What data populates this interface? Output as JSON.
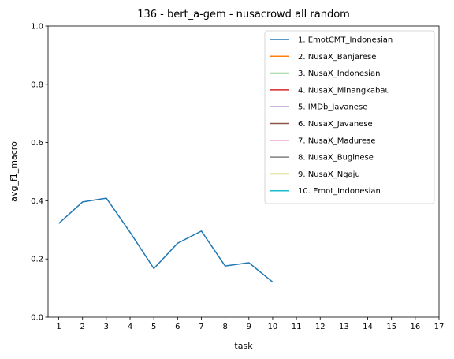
{
  "chart_data": {
    "type": "line",
    "title": "136 - bert_a-gem - nusacrowd all random",
    "xlabel": "task",
    "ylabel": "avg_f1_macro",
    "xlim": [
      0.55,
      17
    ],
    "ylim": [
      0,
      1
    ],
    "x_ticks": [
      1,
      2,
      3,
      4,
      5,
      6,
      7,
      8,
      9,
      10,
      11,
      12,
      13,
      14,
      15,
      16,
      17
    ],
    "y_ticks": [
      0.0,
      0.2,
      0.4,
      0.6,
      0.8,
      1.0
    ],
    "y_tick_labels": [
      "0.0",
      "0.2",
      "0.4",
      "0.6",
      "0.8",
      "1.0"
    ],
    "grid": false,
    "legend_position": "top-right",
    "series": [
      {
        "name": "1. EmotCMT_Indonesian",
        "color": "#1f77b4",
        "x": [
          1,
          2,
          3,
          4,
          5,
          6,
          7,
          8,
          9,
          10
        ],
        "values": [
          0.322,
          0.396,
          0.409,
          0.292,
          0.167,
          0.254,
          0.296,
          0.176,
          0.187,
          0.121
        ]
      },
      {
        "name": "2. NusaX_Banjarese",
        "color": "#ff7f0e",
        "x": [],
        "values": []
      },
      {
        "name": "3. NusaX_Indonesian",
        "color": "#2ca02c",
        "x": [],
        "values": []
      },
      {
        "name": "4. NusaX_Minangkabau",
        "color": "#d62728",
        "x": [],
        "values": []
      },
      {
        "name": "5. IMDb_Javanese",
        "color": "#9467bd",
        "x": [],
        "values": []
      },
      {
        "name": "6. NusaX_Javanese",
        "color": "#8c564b",
        "x": [],
        "values": []
      },
      {
        "name": "7. NusaX_Madurese",
        "color": "#e377c2",
        "x": [],
        "values": []
      },
      {
        "name": "8. NusaX_Buginese",
        "color": "#7f7f7f",
        "x": [],
        "values": []
      },
      {
        "name": "9. NusaX_Ngaju",
        "color": "#bcbd22",
        "x": [],
        "values": []
      },
      {
        "name": "10. Emot_Indonesian",
        "color": "#17becf",
        "x": [],
        "values": []
      }
    ]
  }
}
